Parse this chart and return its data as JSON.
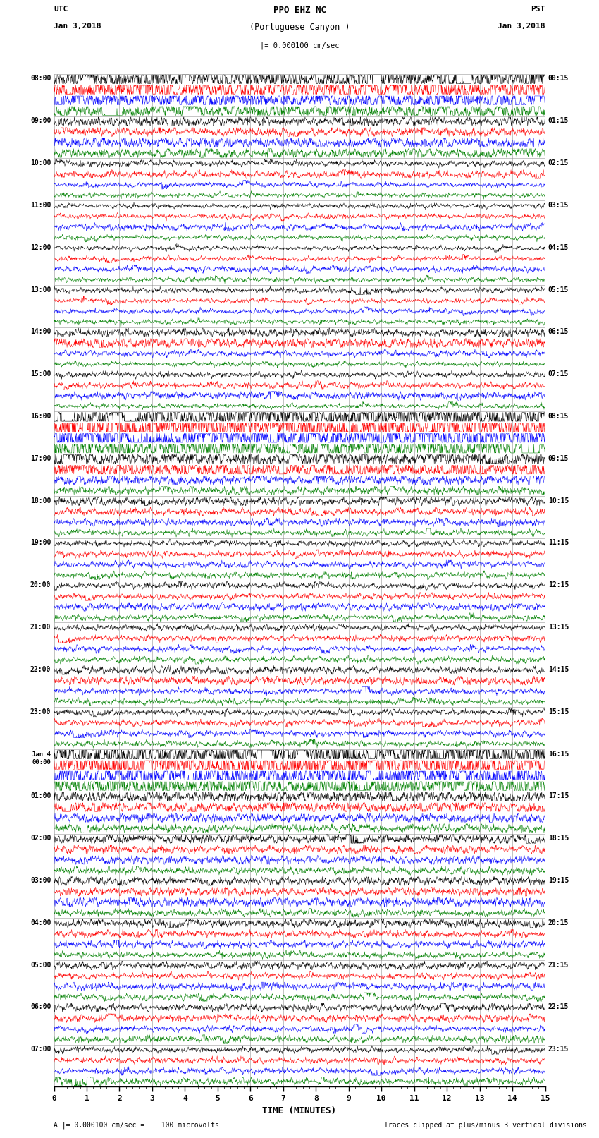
{
  "title_line1": "PPO EHZ NC",
  "title_line2": "(Portuguese Canyon )",
  "scale_text": "= 0.000100 cm/sec",
  "left_label_line1": "UTC",
  "left_label_line2": "Jan 3,2018",
  "right_label_line1": "PST",
  "right_label_line2": "Jan 3,2018",
  "xlabel": "TIME (MINUTES)",
  "footer_left": "= 0.000100 cm/sec =    100 microvolts",
  "footer_right": "Traces clipped at plus/minus 3 vertical divisions",
  "xlim": [
    0,
    15
  ],
  "background_color": "#ffffff",
  "grid_color": "#888888",
  "trace_colors": [
    "#000000",
    "#ff0000",
    "#0000ff",
    "#008000"
  ],
  "num_rows": 24,
  "utc_labels": [
    "08:00",
    "09:00",
    "10:00",
    "11:00",
    "12:00",
    "13:00",
    "14:00",
    "15:00",
    "16:00",
    "17:00",
    "18:00",
    "19:00",
    "20:00",
    "21:00",
    "22:00",
    "23:00",
    "Jan 4\n00:00",
    "01:00",
    "02:00",
    "03:00",
    "04:00",
    "05:00",
    "06:00",
    "07:00"
  ],
  "pst_labels": [
    "00:15",
    "01:15",
    "02:15",
    "03:15",
    "04:15",
    "05:15",
    "06:15",
    "07:15",
    "08:15",
    "09:15",
    "10:15",
    "11:15",
    "12:15",
    "13:15",
    "14:15",
    "15:15",
    "16:15",
    "17:15",
    "18:15",
    "19:15",
    "20:15",
    "21:15",
    "22:15",
    "23:15"
  ]
}
